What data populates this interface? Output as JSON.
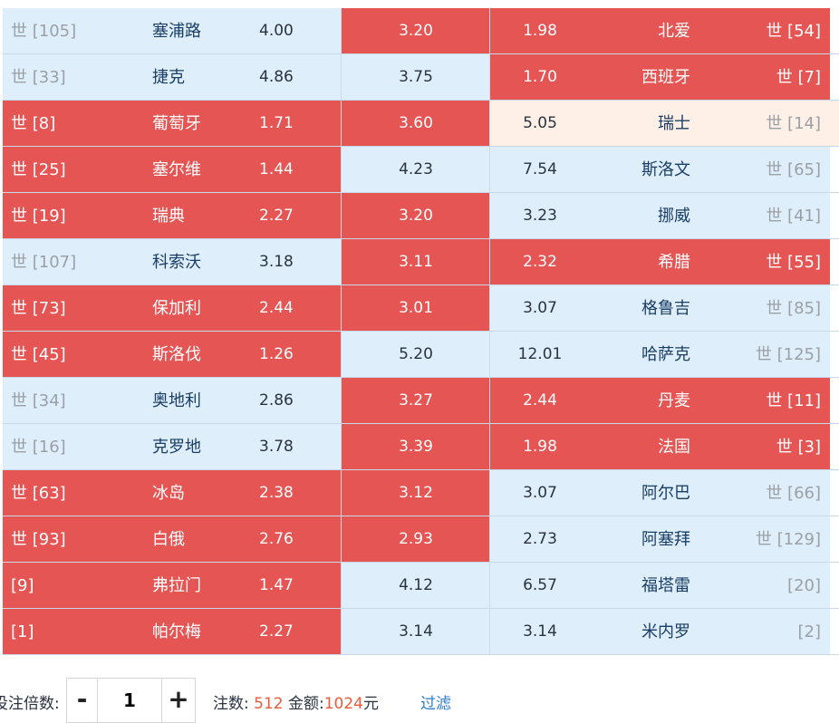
{
  "matches": [
    {
      "home_rank": "世 [105]",
      "home_team": "塞浦路",
      "home_odd": "4.00",
      "draw_odd": "3.20",
      "away_odd": "1.98",
      "away_team": "北爱",
      "away_rank": "世 [54]",
      "home_state": "normal",
      "draw_state": "selected",
      "away_state": "selected"
    },
    {
      "home_rank": "世 [33]",
      "home_team": "捷克",
      "home_odd": "4.86",
      "draw_odd": "3.75",
      "away_odd": "1.70",
      "away_team": "西班牙",
      "away_rank": "世 [7]",
      "home_state": "normal",
      "draw_state": "normal",
      "away_state": "selected"
    },
    {
      "home_rank": "世 [8]",
      "home_team": "葡萄牙",
      "home_odd": "1.71",
      "draw_odd": "3.60",
      "away_odd": "5.05",
      "away_team": "瑞士",
      "away_rank": "世 [14]",
      "home_state": "selected",
      "draw_state": "selected",
      "away_state": "hover"
    },
    {
      "home_rank": "世 [25]",
      "home_team": "塞尔维",
      "home_odd": "1.44",
      "draw_odd": "4.23",
      "away_odd": "7.54",
      "away_team": "斯洛文",
      "away_rank": "世 [65]",
      "home_state": "selected",
      "draw_state": "normal",
      "away_state": "normal"
    },
    {
      "home_rank": "世 [19]",
      "home_team": "瑞典",
      "home_odd": "2.27",
      "draw_odd": "3.20",
      "away_odd": "3.23",
      "away_team": "挪威",
      "away_rank": "世 [41]",
      "home_state": "selected",
      "draw_state": "selected",
      "away_state": "normal"
    },
    {
      "home_rank": "世 [107]",
      "home_team": "科索沃",
      "home_odd": "3.18",
      "draw_odd": "3.11",
      "away_odd": "2.32",
      "away_team": "希腊",
      "away_rank": "世 [55]",
      "home_state": "normal",
      "draw_state": "selected",
      "away_state": "selected"
    },
    {
      "home_rank": "世 [73]",
      "home_team": "保加利",
      "home_odd": "2.44",
      "draw_odd": "3.01",
      "away_odd": "3.07",
      "away_team": "格鲁吉",
      "away_rank": "世 [85]",
      "home_state": "selected",
      "draw_state": "selected",
      "away_state": "normal"
    },
    {
      "home_rank": "世 [45]",
      "home_team": "斯洛伐",
      "home_odd": "1.26",
      "draw_odd": "5.20",
      "away_odd": "12.01",
      "away_team": "哈萨克",
      "away_rank": "世 [125]",
      "home_state": "selected",
      "draw_state": "normal",
      "away_state": "normal"
    },
    {
      "home_rank": "世 [34]",
      "home_team": "奥地利",
      "home_odd": "2.86",
      "draw_odd": "3.27",
      "away_odd": "2.44",
      "away_team": "丹麦",
      "away_rank": "世 [11]",
      "home_state": "normal",
      "draw_state": "selected",
      "away_state": "selected"
    },
    {
      "home_rank": "世 [16]",
      "home_team": "克罗地",
      "home_odd": "3.78",
      "draw_odd": "3.39",
      "away_odd": "1.98",
      "away_team": "法国",
      "away_rank": "世 [3]",
      "home_state": "normal",
      "draw_state": "selected",
      "away_state": "selected"
    },
    {
      "home_rank": "世 [63]",
      "home_team": "冰岛",
      "home_odd": "2.38",
      "draw_odd": "3.12",
      "away_odd": "3.07",
      "away_team": "阿尔巴",
      "away_rank": "世 [66]",
      "home_state": "selected",
      "draw_state": "selected",
      "away_state": "normal"
    },
    {
      "home_rank": "世 [93]",
      "home_team": "白俄",
      "home_odd": "2.76",
      "draw_odd": "2.93",
      "away_odd": "2.73",
      "away_team": "阿塞拜",
      "away_rank": "世 [129]",
      "home_state": "selected",
      "draw_state": "selected",
      "away_state": "normal"
    },
    {
      "home_rank": "[9]",
      "home_team": "弗拉门",
      "home_odd": "1.47",
      "draw_odd": "4.12",
      "away_odd": "6.57",
      "away_team": "福塔雷",
      "away_rank": "[20]",
      "home_state": "selected",
      "draw_state": "normal",
      "away_state": "normal"
    },
    {
      "home_rank": "[1]",
      "home_team": "帕尔梅",
      "home_odd": "2.27",
      "draw_odd": "3.14",
      "away_odd": "3.14",
      "away_team": "米内罗",
      "away_rank": "[2]",
      "home_state": "selected",
      "draw_state": "normal",
      "away_state": "normal"
    }
  ],
  "bottom": {
    "multiplier_label": "投注倍数:",
    "minus_label": "-",
    "multiplier_value": "1",
    "plus_label": "+",
    "bets_label": "注数:",
    "bets_value": "512",
    "amount_label": "金额:",
    "amount_value": "1024",
    "amount_unit": "元",
    "filter_label": "过滤"
  },
  "colors": {
    "selected": "#e45554",
    "normal": "#dfeefb",
    "hover": "#fef0e6",
    "accent": "#e85a3a",
    "link": "#2f7cd1"
  }
}
